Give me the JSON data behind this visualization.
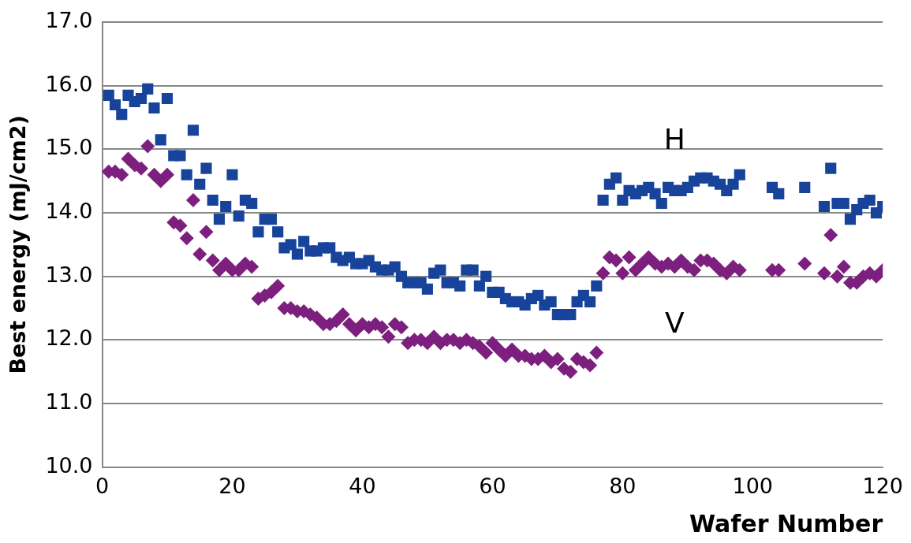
{
  "chart_data": {
    "type": "scatter",
    "xlabel": "Wafer Number",
    "ylabel": "Best energy (mJ/cm2)",
    "x": [
      1,
      2,
      3,
      4,
      5,
      6,
      7,
      8,
      9,
      10,
      11,
      12,
      13,
      14,
      15,
      16,
      17,
      18,
      19,
      20,
      21,
      22,
      23,
      24,
      25,
      26,
      27,
      28,
      29,
      30,
      31,
      32,
      33,
      34,
      35,
      36,
      37,
      38,
      39,
      40,
      41,
      42,
      43,
      44,
      45,
      46,
      47,
      48,
      49,
      50,
      51,
      52,
      53,
      54,
      55,
      56,
      57,
      58,
      59,
      60,
      61,
      62,
      63,
      64,
      65,
      66,
      67,
      68,
      69,
      70,
      71,
      72,
      73,
      74,
      75,
      76,
      77,
      78,
      79,
      80,
      81,
      82,
      83,
      84,
      85,
      86,
      87,
      88,
      89,
      90,
      91,
      92,
      93,
      94,
      95,
      96,
      97,
      98,
      103,
      104,
      108,
      111,
      112,
      113,
      114,
      115,
      116,
      117,
      118,
      119,
      120
    ],
    "series": [
      {
        "name": "H",
        "color": "#17449a",
        "marker": "square",
        "values": [
          15.85,
          15.7,
          15.55,
          15.85,
          15.75,
          15.8,
          15.95,
          15.65,
          15.15,
          15.8,
          14.9,
          14.9,
          14.6,
          15.3,
          14.45,
          14.7,
          14.2,
          13.9,
          14.1,
          14.6,
          13.95,
          14.2,
          14.15,
          13.7,
          13.9,
          13.9,
          13.7,
          13.45,
          13.5,
          13.35,
          13.55,
          13.4,
          13.4,
          13.45,
          13.45,
          13.3,
          13.25,
          13.3,
          13.2,
          13.2,
          13.25,
          13.15,
          13.1,
          13.1,
          13.15,
          13.0,
          12.9,
          12.9,
          12.9,
          12.8,
          13.05,
          13.1,
          12.9,
          12.9,
          12.85,
          13.1,
          13.1,
          12.85,
          13.0,
          12.75,
          12.75,
          12.65,
          12.6,
          12.6,
          12.55,
          12.65,
          12.7,
          12.55,
          12.6,
          12.4,
          12.4,
          12.4,
          12.6,
          12.7,
          12.6,
          12.85,
          14.2,
          14.45,
          14.55,
          14.2,
          14.35,
          14.3,
          14.35,
          14.4,
          14.3,
          14.15,
          14.4,
          14.35,
          14.35,
          14.4,
          14.5,
          14.55,
          14.55,
          14.5,
          14.45,
          14.35,
          14.45,
          14.6,
          14.4,
          14.3,
          14.4,
          14.1,
          14.7,
          14.15,
          14.15,
          13.9,
          14.05,
          14.15,
          14.2,
          14.0,
          14.1
        ]
      },
      {
        "name": "V",
        "color": "#7d1f7e",
        "marker": "diamond",
        "values": [
          14.65,
          14.65,
          14.6,
          14.85,
          14.75,
          14.7,
          15.05,
          14.6,
          14.5,
          14.6,
          13.85,
          13.8,
          13.6,
          14.2,
          13.35,
          13.7,
          13.25,
          13.1,
          13.2,
          13.1,
          13.1,
          13.2,
          13.15,
          12.65,
          12.7,
          12.75,
          12.85,
          12.5,
          12.5,
          12.45,
          12.45,
          12.4,
          12.35,
          12.25,
          12.25,
          12.3,
          12.4,
          12.25,
          12.15,
          12.25,
          12.2,
          12.25,
          12.2,
          12.05,
          12.25,
          12.2,
          11.95,
          12.0,
          12.0,
          11.95,
          12.05,
          11.95,
          12.0,
          12.0,
          11.95,
          12.0,
          11.95,
          11.9,
          11.8,
          11.95,
          11.85,
          11.75,
          11.85,
          11.75,
          11.75,
          11.7,
          11.7,
          11.75,
          11.65,
          11.7,
          11.55,
          11.5,
          11.7,
          11.65,
          11.6,
          11.8,
          13.05,
          13.3,
          13.25,
          13.05,
          13.3,
          13.1,
          13.2,
          13.3,
          13.2,
          13.15,
          13.2,
          13.15,
          13.25,
          13.15,
          13.1,
          13.25,
          13.25,
          13.2,
          13.1,
          13.05,
          13.15,
          13.1,
          13.1,
          13.1,
          13.2,
          13.05,
          13.65,
          13.0,
          13.15,
          12.9,
          12.9,
          13.0,
          13.05,
          13.0,
          13.1
        ]
      }
    ],
    "xlim": [
      0,
      120
    ],
    "xticks": [
      0,
      20,
      40,
      60,
      80,
      100,
      120
    ],
    "ylim": [
      10,
      17
    ],
    "yticks": [
      {
        "value": 10,
        "label": "10.0"
      },
      {
        "value": 11,
        "label": "11.0"
      },
      {
        "value": 12,
        "label": "12.0"
      },
      {
        "value": 13,
        "label": "13.0"
      },
      {
        "value": 14,
        "label": "14.0"
      },
      {
        "value": 15,
        "label": "15.0"
      },
      {
        "value": 16,
        "label": "16.0"
      },
      {
        "value": 17,
        "label": "17.0"
      }
    ],
    "grid": "y",
    "legend": false
  }
}
